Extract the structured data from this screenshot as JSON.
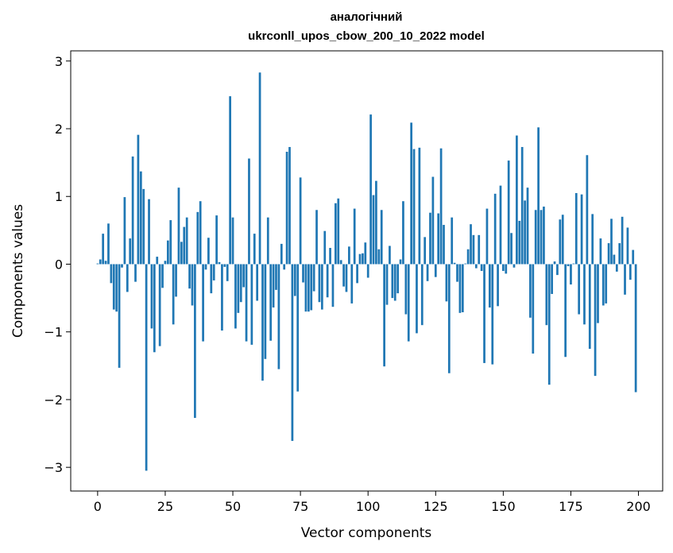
{
  "chart_data": {
    "type": "bar",
    "title": [
      "аналогічний",
      "ukrconll_upos_cbow_200_10_2022 model"
    ],
    "xlabel": "Vector components",
    "ylabel": "Components values",
    "xlim": [
      -9.95,
      208.95
    ],
    "ylim": [
      -3.35,
      3.15
    ],
    "xticks": [
      0,
      25,
      50,
      75,
      100,
      125,
      150,
      175,
      200
    ],
    "xtick_labels": [
      "0",
      "25",
      "50",
      "75",
      "100",
      "125",
      "150",
      "175",
      "200"
    ],
    "yticks": [
      -3,
      -2,
      -1,
      0,
      1,
      2,
      3
    ],
    "ytick_labels": [
      "−3",
      "−2",
      "−1",
      "0",
      "1",
      "2",
      "3"
    ],
    "bar_color": "#1f77b4",
    "grid": false,
    "legend": "none",
    "x": [
      0,
      1,
      2,
      3,
      4,
      5,
      6,
      7,
      8,
      9,
      10,
      11,
      12,
      13,
      14,
      15,
      16,
      17,
      18,
      19,
      20,
      21,
      22,
      23,
      24,
      25,
      26,
      27,
      28,
      29,
      30,
      31,
      32,
      33,
      34,
      35,
      36,
      37,
      38,
      39,
      40,
      41,
      42,
      43,
      44,
      45,
      46,
      47,
      48,
      49,
      50,
      51,
      52,
      53,
      54,
      55,
      56,
      57,
      58,
      59,
      60,
      61,
      62,
      63,
      64,
      65,
      66,
      67,
      68,
      69,
      70,
      71,
      72,
      73,
      74,
      75,
      76,
      77,
      78,
      79,
      80,
      81,
      82,
      83,
      84,
      85,
      86,
      87,
      88,
      89,
      90,
      91,
      92,
      93,
      94,
      95,
      96,
      97,
      98,
      99,
      100,
      101,
      102,
      103,
      104,
      105,
      106,
      107,
      108,
      109,
      110,
      111,
      112,
      113,
      114,
      115,
      116,
      117,
      118,
      119,
      120,
      121,
      122,
      123,
      124,
      125,
      126,
      127,
      128,
      129,
      130,
      131,
      132,
      133,
      134,
      135,
      136,
      137,
      138,
      139,
      140,
      141,
      142,
      143,
      144,
      145,
      146,
      147,
      148,
      149,
      150,
      151,
      152,
      153,
      154,
      155,
      156,
      157,
      158,
      159,
      160,
      161,
      162,
      163,
      164,
      165,
      166,
      167,
      168,
      169,
      170,
      171,
      172,
      173,
      174,
      175,
      176,
      177,
      178,
      179,
      180,
      181,
      182,
      183,
      184,
      185,
      186,
      187,
      188,
      189,
      190,
      191,
      192,
      193,
      194,
      195,
      196,
      197,
      198,
      199
    ],
    "values": [
      0.01,
      0.07,
      0.45,
      0.05,
      0.6,
      -0.28,
      -0.67,
      -0.7,
      -1.53,
      -0.05,
      0.99,
      -0.41,
      0.38,
      1.59,
      -0.26,
      1.91,
      1.37,
      1.11,
      -3.05,
      0.96,
      -0.95,
      -1.3,
      0.11,
      -1.21,
      -0.35,
      0.05,
      0.35,
      0.65,
      -0.89,
      -0.48,
      1.13,
      0.33,
      0.55,
      0.69,
      -0.36,
      -0.61,
      -2.27,
      0.77,
      0.93,
      -1.14,
      -0.08,
      0.39,
      -0.43,
      -0.24,
      0.72,
      0.03,
      -0.98,
      -0.04,
      -0.25,
      2.48,
      0.69,
      -0.95,
      -0.72,
      -0.56,
      -0.34,
      -1.14,
      1.56,
      -1.19,
      0.45,
      -0.54,
      2.83,
      -1.72,
      -1.4,
      0.69,
      -1.13,
      -0.64,
      -0.38,
      -1.55,
      0.3,
      -0.08,
      1.66,
      1.73,
      -2.61,
      -0.47,
      -1.88,
      1.28,
      -0.27,
      -0.7,
      -0.7,
      -0.68,
      -0.4,
      0.8,
      -0.56,
      -0.67,
      0.49,
      -0.49,
      0.24,
      -0.63,
      0.9,
      0.97,
      0.06,
      -0.33,
      -0.41,
      0.26,
      -0.58,
      0.82,
      -0.28,
      0.15,
      0.16,
      0.32,
      -0.2,
      2.21,
      1.02,
      1.23,
      0.22,
      0.8,
      -1.51,
      -0.6,
      0.27,
      -0.5,
      -0.54,
      -0.43,
      0.07,
      0.93,
      -0.74,
      -1.14,
      2.09,
      1.7,
      -1.02,
      1.72,
      -0.9,
      0.4,
      -0.25,
      0.76,
      1.29,
      -0.19,
      0.75,
      1.71,
      0.58,
      -0.55,
      -1.61,
      0.69,
      0.02,
      -0.26,
      -0.72,
      -0.71,
      0.01,
      0.22,
      0.59,
      0.43,
      -0.06,
      0.43,
      -0.1,
      -1.46,
      0.82,
      -0.64,
      -1.48,
      1.04,
      -0.62,
      1.16,
      -0.1,
      -0.14,
      1.53,
      0.46,
      -0.05,
      1.9,
      0.64,
      1.73,
      0.94,
      1.13,
      -0.79,
      -1.32,
      0.8,
      2.02,
      0.8,
      0.85,
      -0.9,
      -1.78,
      -0.44,
      0.04,
      -0.16,
      0.66,
      0.73,
      -1.37,
      -0.03,
      -0.3,
      0.01,
      1.05,
      -0.74,
      1.03,
      -0.89,
      1.61,
      -1.25,
      0.74,
      -1.65,
      -0.87,
      0.38,
      -0.61,
      -0.58,
      0.31,
      0.67,
      0.14,
      -0.11,
      0.31,
      0.7,
      -0.45,
      0.54,
      -0.23,
      0.21,
      -1.89
    ]
  }
}
